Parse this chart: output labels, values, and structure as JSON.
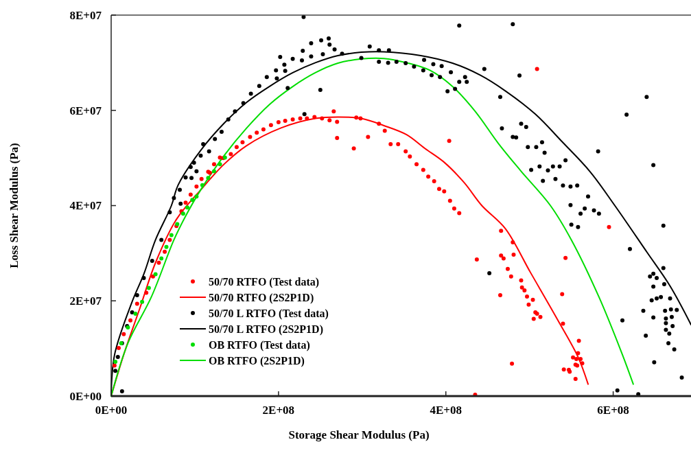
{
  "chart_data": {
    "type": "scatter",
    "xlabel": "Storage Shear Modulus (Pa)",
    "ylabel": "Loss Shear Modulus (Pa)",
    "xlim": [
      0,
      693000000.0
    ],
    "ylim": [
      0,
      80000000.0
    ],
    "xticks": [
      {
        "value": 0,
        "label": "0E+00"
      },
      {
        "value": 200000000.0,
        "label": "2E+08"
      },
      {
        "value": 400000000.0,
        "label": "4E+08"
      },
      {
        "value": 600000000.0,
        "label": "6E+08"
      }
    ],
    "yticks": [
      {
        "value": 0,
        "label": "0E+00"
      },
      {
        "value": 20000000.0,
        "label": "2E+07"
      },
      {
        "value": 40000000.0,
        "label": "4E+07"
      },
      {
        "value": 60000000.0,
        "label": "6E+07"
      },
      {
        "value": 80000000.0,
        "label": "8E+07"
      }
    ],
    "grid": false,
    "legend": "bottom left",
    "series": [
      {
        "name": "50/70 RTFO (Test data)",
        "marker": "circle",
        "color": "#ff0000",
        "x": [
          266000000.0,
          293000000.0,
          298000000.0,
          320000000.0,
          327000000.0,
          334000000.0,
          343000000.0,
          270000000.0,
          290000000.0,
          307000000.0,
          261000000.0,
          252000000.0,
          270000000.0,
          243000000.0,
          234000000.0,
          226000000.0,
          217000000.0,
          208000000.0,
          200000000.0,
          191000000.0,
          182000000.0,
          174000000.0,
          166000000.0,
          157000000.0,
          150000000.0,
          143000000.0,
          134000000.0,
          130000000.0,
          123000000.0,
          118000000.0,
          116000000.0,
          108000000.0,
          102000000.0,
          95000000.0,
          89000000.0,
          84000000.0,
          352000000.0,
          357000000.0,
          365000000.0,
          373000000.0,
          379000000.0,
          386000000.0,
          392000000.0,
          398000000.0,
          405000000.0,
          410000000.0,
          416000000.0,
          404000000.0,
          509000000.0,
          466000000.0,
          480000000.0,
          466000000.0,
          469000000.0,
          481000000.0,
          437000000.0,
          474000000.0,
          478000000.0,
          490000000.0,
          491000000.0,
          494000000.0,
          497000000.0,
          504000000.0,
          499000000.0,
          507000000.0,
          509000000.0,
          513000000.0,
          505000000.0,
          465000000.0,
          543000000.0,
          539000000.0,
          540000000.0,
          559000000.0,
          558000000.0,
          552000000.0,
          556000000.0,
          561000000.0,
          563000000.0,
          555000000.0,
          557000000.0,
          541000000.0,
          547000000.0,
          548000000.0,
          555000000.0,
          479000000.0,
          435000000.0,
          595000000.0,
          78000000.0,
          70000000.0,
          64000000.0,
          57000000.0,
          50000000.0,
          42000000.0,
          31000000.0,
          23000000.0,
          15000000.0,
          9000000.0,
          4000000.0
        ],
        "values": [
          59800000.0,
          58500000.0,
          58300000.0,
          57200000.0,
          55700000.0,
          52900000.0,
          52900000.0,
          54200000.0,
          52000000.0,
          54400000.0,
          57900000.0,
          58300000.0,
          57600000.0,
          58600000.0,
          58300000.0,
          58300000.0,
          58100000.0,
          57800000.0,
          57500000.0,
          56900000.0,
          56000000.0,
          55300000.0,
          54400000.0,
          53300000.0,
          52300000.0,
          50800000.0,
          50000000.0,
          50100000.0,
          48700000.0,
          46900000.0,
          47100000.0,
          45600000.0,
          44000000.0,
          42300000.0,
          40600000.0,
          38800000.0,
          51400000.0,
          50300000.0,
          48700000.0,
          47500000.0,
          46100000.0,
          45100000.0,
          43500000.0,
          43000000.0,
          41000000.0,
          39400000.0,
          38400000.0,
          53600000.0,
          68700000.0,
          34700000.0,
          32300000.0,
          29500000.0,
          28900000.0,
          29700000.0,
          28700000.0,
          26700000.0,
          25100000.0,
          24300000.0,
          22800000.0,
          22200000.0,
          20900000.0,
          20200000.0,
          19200000.0,
          17600000.0,
          17300000.0,
          16600000.0,
          16200000.0,
          21200000.0,
          29000000.0,
          21400000.0,
          15200000.0,
          11600000.0,
          9000000.0,
          8100000.0,
          7800000.0,
          7800000.0,
          6900000.0,
          6600000.0,
          6400000.0,
          5600000.0,
          5500000.0,
          5100000.0,
          3600000.0,
          6800000.0,
          300000.0,
          35500000.0,
          35700000.0,
          32800000.0,
          30300000.0,
          28000000.0,
          25100000.0,
          21700000.0,
          19400000.0,
          15900000.0,
          13000000.0,
          10100000.0,
          6400000.0
        ]
      },
      {
        "name": "50/70 RTFO (2S2P1D)",
        "type": "line",
        "marker": "none",
        "color": "#ff0000",
        "x": [
          0,
          15000000.0,
          34000000.0,
          53000000.0,
          78000000.0,
          107000000.0,
          135000000.0,
          162000000.0,
          203000000.0,
          244000000.0,
          271000000.0,
          299000000.0,
          326000000.0,
          353000000.0,
          375000000.0,
          398000000.0,
          422000000.0,
          443000000.0,
          471000000.0,
          501000000.0,
          534000000.0,
          558000000.0,
          570000000.0
        ],
        "values": [
          0,
          8700000.0,
          18300000.0,
          28000000.0,
          37100000.0,
          43300000.0,
          48700000.0,
          52600000.0,
          56300000.0,
          58300000.0,
          58600000.0,
          58300000.0,
          56800000.0,
          54900000.0,
          52000000.0,
          49100000.0,
          44800000.0,
          40000000.0,
          35200000.0,
          26000000.0,
          15900000.0,
          8200000.0,
          2500000.0
        ]
      },
      {
        "name": "50/70 L RTFO (Test data)",
        "marker": "circle",
        "color": "#000000",
        "x": [
          230000000.0,
          251000000.0,
          260000000.0,
          261000000.0,
          239000000.0,
          229000000.0,
          239000000.0,
          253000000.0,
          267000000.0,
          276000000.0,
          309000000.0,
          320000000.0,
          332000000.0,
          320000000.0,
          331000000.0,
          299000000.0,
          202000000.0,
          207000000.0,
          217000000.0,
          228000000.0,
          197000000.0,
          208000000.0,
          186000000.0,
          198000000.0,
          177000000.0,
          167000000.0,
          158000000.0,
          148000000.0,
          140000000.0,
          132000000.0,
          124000000.0,
          110000000.0,
          117000000.0,
          107000000.0,
          99000000.0,
          95000000.0,
          102000000.0,
          89000000.0,
          96000000.0,
          82000000.0,
          75000000.0,
          83000000.0,
          70000000.0,
          250000000.0,
          231000000.0,
          211000000.0,
          416000000.0,
          480000000.0,
          446000000.0,
          488000000.0,
          341000000.0,
          352000000.0,
          362000000.0,
          374000000.0,
          385000000.0,
          395000000.0,
          406000000.0,
          373000000.0,
          383000000.0,
          393000000.0,
          423000000.0,
          416000000.0,
          411000000.0,
          402000000.0,
          425000000.0,
          465000000.0,
          467000000.0,
          490000000.0,
          496000000.0,
          480000000.0,
          484000000.0,
          498000000.0,
          508000000.0,
          515000000.0,
          518000000.0,
          502000000.0,
          512000000.0,
          522000000.0,
          528000000.0,
          536000000.0,
          543000000.0,
          531000000.0,
          516000000.0,
          540000000.0,
          549000000.0,
          557000000.0,
          570000000.0,
          549000000.0,
          566000000.0,
          561000000.0,
          577000000.0,
          583000000.0,
          582000000.0,
          616000000.0,
          640000000.0,
          648000000.0,
          550000000.0,
          558000000.0,
          660000000.0,
          620000000.0,
          660000000.0,
          644000000.0,
          648000000.0,
          652000000.0,
          661000000.0,
          648000000.0,
          646000000.0,
          652000000.0,
          657000000.0,
          668000000.0,
          636000000.0,
          662000000.0,
          669000000.0,
          676000000.0,
          648000000.0,
          663000000.0,
          670000000.0,
          663000000.0,
          671000000.0,
          663000000.0,
          667000000.0,
          611000000.0,
          639000000.0,
          666000000.0,
          673000000.0,
          649000000.0,
          682000000.0,
          605000000.0,
          630000000.0,
          452000000.0,
          5000000.0,
          8000000.0,
          13000000.0,
          19000000.0,
          25000000.0,
          31000000.0,
          39000000.0,
          49000000.0,
          60000000.0,
          13000000.0
        ],
        "values": [
          79600000.0,
          74700000.0,
          75100000.0,
          73800000.0,
          74100000.0,
          72500000.0,
          71300000.0,
          71800000.0,
          72800000.0,
          71900000.0,
          73400000.0,
          72600000.0,
          72600000.0,
          70200000.0,
          70000000.0,
          71000000.0,
          71200000.0,
          69600000.0,
          70800000.0,
          70500000.0,
          68400000.0,
          68300000.0,
          67000000.0,
          66700000.0,
          65100000.0,
          63500000.0,
          61500000.0,
          59800000.0,
          58100000.0,
          55500000.0,
          54000000.0,
          52900000.0,
          51400000.0,
          50500000.0,
          49000000.0,
          48100000.0,
          47200000.0,
          45900000.0,
          45800000.0,
          43300000.0,
          41600000.0,
          40400000.0,
          38600000.0,
          64300000.0,
          59200000.0,
          64700000.0,
          77800000.0,
          78100000.0,
          68700000.0,
          67300000.0,
          70200000.0,
          69900000.0,
          69200000.0,
          70600000.0,
          69700000.0,
          69300000.0,
          68000000.0,
          68400000.0,
          67400000.0,
          67000000.0,
          67000000.0,
          66000000.0,
          64500000.0,
          64000000.0,
          66000000.0,
          62800000.0,
          56200000.0,
          57200000.0,
          56500000.0,
          54400000.0,
          54300000.0,
          52300000.0,
          52300000.0,
          53300000.0,
          51100000.0,
          47500000.0,
          48200000.0,
          47400000.0,
          48200000.0,
          48200000.0,
          49500000.0,
          45600000.0,
          45200000.0,
          44200000.0,
          44000000.0,
          44200000.0,
          41900000.0,
          40100000.0,
          39400000.0,
          38300000.0,
          39000000.0,
          38300000.0,
          51400000.0,
          59100000.0,
          62800000.0,
          48500000.0,
          36000000.0,
          35500000.0,
          35800000.0,
          30900000.0,
          26900000.0,
          25100000.0,
          25700000.0,
          24800000.0,
          23500000.0,
          23000000.0,
          20100000.0,
          20500000.0,
          20800000.0,
          20500000.0,
          17900000.0,
          17900000.0,
          18200000.0,
          18100000.0,
          16500000.0,
          16300000.0,
          16600000.0,
          15300000.0,
          14700000.0,
          13900000.0,
          13100000.0,
          15900000.0,
          12700000.0,
          11100000.0,
          9800000.0,
          7100000.0,
          3900000.0,
          1200000.0,
          400000.0,
          25800000.0,
          5300000.0,
          8200000.0,
          11100000.0,
          14700000.0,
          17600000.0,
          21200000.0,
          24800000.0,
          28400000.0,
          32800000.0,
          1000000.0
        ]
      },
      {
        "name": "50/70 L RTFO (2S2P1D)",
        "type": "line",
        "marker": "none",
        "color": "#000000",
        "x": [
          0,
          4100000.0,
          25000000.0,
          39000000.0,
          53000000.0,
          72000000.0,
          80000000.0,
          107000000.0,
          135000000.0,
          162000000.0,
          189000000.0,
          217000000.0,
          244000000.0,
          271000000.0,
          299000000.0,
          326000000.0,
          370000000.0,
          408000000.0,
          441000000.0,
          471000000.0,
          507000000.0,
          539000000.0,
          572000000.0,
          602000000.0,
          640000000.0,
          668000000.0,
          693000000.0
        ],
        "values": [
          0,
          8700000.0,
          19800000.0,
          25600000.0,
          32800000.0,
          40000000.0,
          44300000.0,
          51600000.0,
          57300000.0,
          61700000.0,
          65000000.0,
          67900000.0,
          70000000.0,
          71500000.0,
          72200000.0,
          72300000.0,
          71500000.0,
          69900000.0,
          67400000.0,
          64100000.0,
          59200000.0,
          53400000.0,
          47200000.0,
          40000000.0,
          30300000.0,
          23100000.0,
          15000000.0
        ]
      },
      {
        "name": "OB RTFO (Test data)",
        "marker": "circle",
        "color": "#00dd00",
        "x": [
          136000000.0,
          130000000.0,
          123000000.0,
          116000000.0,
          109000000.0,
          102000000.0,
          97000000.0,
          91000000.0,
          86000000.0,
          79000000.0,
          72000000.0,
          66000000.0,
          60000000.0,
          53000000.0,
          45000000.0,
          37000000.0,
          29000000.0,
          20000000.0,
          12000000.0,
          5000000.0
        ],
        "values": [
          50100000.0,
          48700000.0,
          47200000.0,
          45800000.0,
          44300000.0,
          41900000.0,
          41200000.0,
          39600000.0,
          38300000.0,
          36100000.0,
          33800000.0,
          31300000.0,
          28900000.0,
          25600000.0,
          22700000.0,
          19800000.0,
          17300000.0,
          14400000.0,
          11100000.0,
          7200000.0
        ]
      },
      {
        "name": "OB RTFO (2S2P1D)",
        "type": "line",
        "marker": "none",
        "color": "#00dd00",
        "x": [
          0,
          20000000.0,
          48000000.0,
          75000000.0,
          89000000.0,
          107000000.0,
          135000000.0,
          162000000.0,
          189000000.0,
          217000000.0,
          244000000.0,
          271000000.0,
          299000000.0,
          326000000.0,
          353000000.0,
          381000000.0,
          408000000.0,
          435000000.0,
          463000000.0,
          490000000.0,
          525000000.0,
          550000000.0,
          583000000.0,
          611000000.0,
          624000000.0
        ],
        "values": [
          0,
          11100000.0,
          20800000.0,
          32800000.0,
          37800000.0,
          43300000.0,
          50500000.0,
          56300000.0,
          61200000.0,
          65000000.0,
          67900000.0,
          69900000.0,
          70800000.0,
          70900000.0,
          70000000.0,
          68400000.0,
          65000000.0,
          59800000.0,
          53000000.0,
          47200000.0,
          40000000.0,
          32800000.0,
          20800000.0,
          8700000.0,
          2500000.0
        ]
      }
    ]
  }
}
